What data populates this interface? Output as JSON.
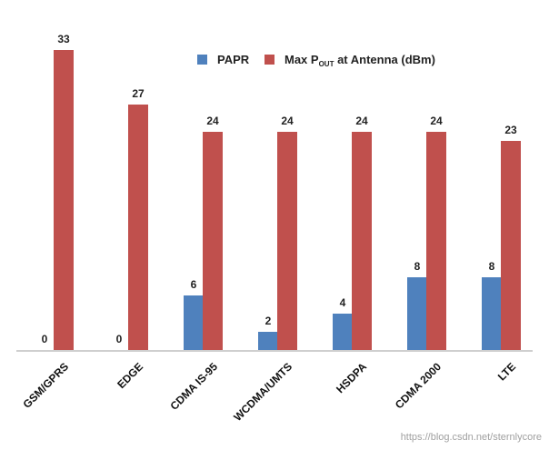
{
  "chart_data": {
    "type": "bar",
    "categories": [
      "GSM/GPRS",
      "EDGE",
      "CDMA IS-95",
      "WCDMA/UMTS",
      "HSDPA",
      "CDMA 2000",
      "LTE"
    ],
    "series": [
      {
        "name": "PAPR",
        "values": [
          0,
          0,
          6,
          2,
          4,
          8,
          8
        ],
        "color": "#4f81bd"
      },
      {
        "name": "Max POUT at Antenna (dBm)",
        "values": [
          33,
          27,
          24,
          24,
          24,
          24,
          23
        ],
        "color": "#c0504d"
      }
    ],
    "legend": {
      "position": "top-right",
      "papr_label": "PAPR",
      "max_label_main": "Max P",
      "max_label_sub": "OUT",
      "max_label_rest": " at Antenna (dBm)"
    },
    "ylim": [
      0,
      35
    ],
    "grid": false
  },
  "watermark": "https://blog.csdn.net/sternlycore"
}
